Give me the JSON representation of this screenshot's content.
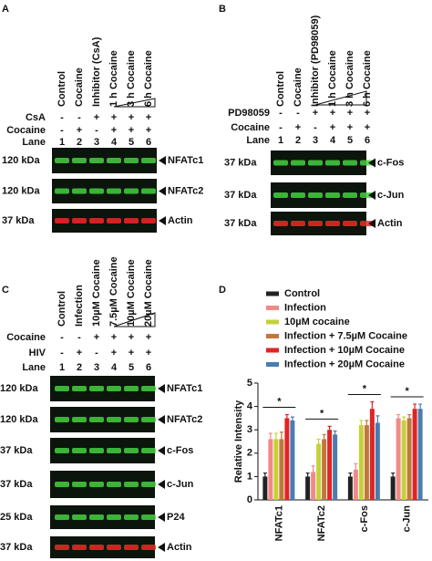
{
  "panel_a": {
    "letter": "A",
    "headers": [
      "Control",
      "Cocaine",
      "Inhibitor (CsA)",
      "1 h Cocaine",
      "3 h Cocaine",
      "6 h Cocaine"
    ],
    "rows": [
      {
        "label": "CsA",
        "marks": [
          "-",
          "-",
          "+",
          "+",
          "+",
          "+"
        ]
      },
      {
        "label": "Cocaine",
        "marks": [
          "-",
          "+",
          "-",
          "+",
          "+",
          "+"
        ]
      },
      {
        "label": "Lane",
        "marks": [
          "1",
          "2",
          "3",
          "4",
          "5",
          "6"
        ]
      }
    ],
    "blots": [
      {
        "kda": "120 kDa",
        "name": "NFATc1",
        "color": "#44d040"
      },
      {
        "kda": "120 kDa",
        "name": "NFATc2",
        "color": "#44d040"
      },
      {
        "kda": "37 kDa",
        "name": "Actin",
        "color": "#f02828"
      }
    ]
  },
  "panel_b": {
    "letter": "B",
    "headers": [
      "Control",
      "Cocaine",
      "Inhibitor (PD98059)",
      "1 h Cocaine",
      "3 h Cocaine",
      "6 h Cocaine"
    ],
    "rows": [
      {
        "label": "PD98059",
        "marks": [
          "-",
          "-",
          "+",
          "+",
          "+",
          "+"
        ]
      },
      {
        "label": "Cocaine",
        "marks": [
          "-",
          "+",
          "-",
          "+",
          "+",
          "+"
        ]
      },
      {
        "label": "Lane",
        "marks": [
          "1",
          "2",
          "3",
          "4",
          "5",
          "6"
        ]
      }
    ],
    "blots": [
      {
        "kda": "37 kDa",
        "name": "c-Fos",
        "color": "#44d040"
      },
      {
        "kda": "37 kDa",
        "name": "c-Jun",
        "color": "#44d040"
      },
      {
        "kda": "37 kDa",
        "name": "Actin",
        "color": "#f02828"
      }
    ]
  },
  "panel_c": {
    "letter": "C",
    "headers": [
      "Control",
      "Infection",
      "10µM Cocaine",
      "7.5µM Cocaine",
      "10µM Cocaine",
      "20µM Cocaine"
    ],
    "rows": [
      {
        "label": "Cocaine",
        "marks": [
          "-",
          "-",
          "+",
          "+",
          "+",
          "+"
        ]
      },
      {
        "label": "HIV",
        "marks": [
          "-",
          "+",
          "-",
          "+",
          "+",
          "+"
        ]
      },
      {
        "label": "Lane",
        "marks": [
          "1",
          "2",
          "3",
          "4",
          "5",
          "6"
        ]
      }
    ],
    "blots": [
      {
        "kda": "120 kDa",
        "name": "NFATc1",
        "color": "#44d040"
      },
      {
        "kda": "120 kDa",
        "name": "NFATc2",
        "color": "#44d040"
      },
      {
        "kda": "37 kDa",
        "name": "c-Fos",
        "color": "#44d040"
      },
      {
        "kda": "37 kDa",
        "name": "c-Jun",
        "color": "#44d040"
      },
      {
        "kda": "25 kDa",
        "name": "P24",
        "color": "#44d040"
      },
      {
        "kda": "37 kDa",
        "name": "Actin",
        "color": "#f02828"
      }
    ]
  },
  "chart_data": {
    "type": "bar",
    "letter": "D",
    "y_label": "Relative Intensity",
    "categories": [
      "NFATc1",
      "NFATc2",
      "c-Fos",
      "c-Jun"
    ],
    "series": [
      {
        "name": "Control",
        "color": "#222222",
        "values": [
          1.0,
          1.0,
          1.0,
          1.0
        ],
        "errors": [
          0.15,
          0.15,
          0.15,
          0.15
        ]
      },
      {
        "name": "Infection",
        "color": "#f08a8a",
        "values": [
          2.6,
          1.2,
          1.3,
          3.5
        ],
        "errors": [
          0.25,
          0.25,
          0.25,
          0.15
        ]
      },
      {
        "name": "10µM cocaine",
        "color": "#c5d03a",
        "values": [
          2.6,
          2.4,
          3.2,
          3.4
        ],
        "errors": [
          0.25,
          0.2,
          0.2,
          0.15
        ]
      },
      {
        "name": "Infection + 7.5µM Cocaine",
        "color": "#c0783a",
        "values": [
          2.6,
          2.6,
          3.2,
          3.5
        ],
        "errors": [
          0.3,
          0.2,
          0.2,
          0.15
        ]
      },
      {
        "name": "Infection + 10µM Cocaine",
        "color": "#e02424",
        "values": [
          3.5,
          3.0,
          3.9,
          3.9
        ],
        "errors": [
          0.15,
          0.15,
          0.3,
          0.2
        ]
      },
      {
        "name": "Infection + 20µM Cocaine",
        "color": "#4a7cb0",
        "values": [
          3.4,
          2.8,
          3.3,
          3.9
        ],
        "errors": [
          0.15,
          0.15,
          0.3,
          0.2
        ]
      }
    ],
    "ylim": [
      0,
      5
    ],
    "yticks": [
      0,
      1,
      2,
      3,
      4,
      5
    ],
    "significance": [
      "*",
      "*",
      "*",
      "*"
    ]
  }
}
